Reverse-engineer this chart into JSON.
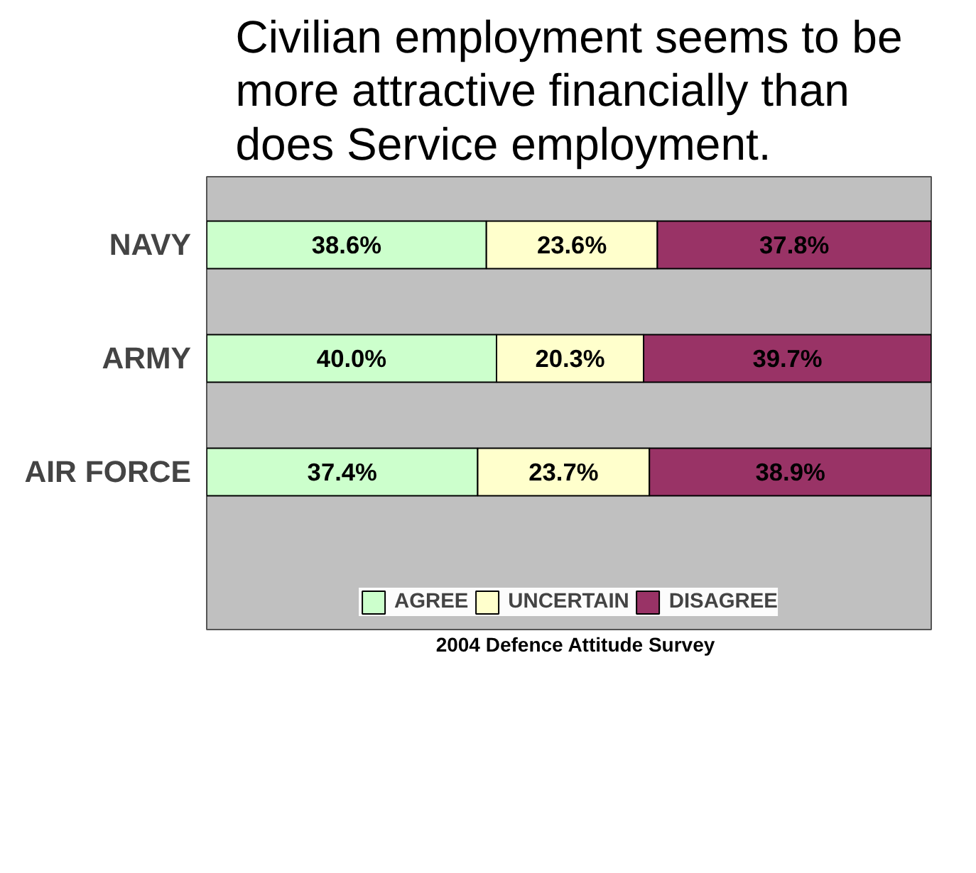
{
  "chart_data": {
    "type": "bar",
    "orientation": "horizontal",
    "stacked": true,
    "title": "Civilian employment seems to be more attractive financially than does Service employment.",
    "categories": [
      "NAVY",
      "ARMY",
      "AIR FORCE"
    ],
    "series": [
      {
        "name": "AGREE",
        "color": "#ccffcc",
        "values": [
          38.6,
          40.0,
          37.4
        ],
        "value_labels": [
          "38.6%",
          "40.0%",
          "37.4%"
        ]
      },
      {
        "name": "UNCERTAIN",
        "color": "#ffffcc",
        "values": [
          23.6,
          20.3,
          23.7
        ],
        "value_labels": [
          "23.6%",
          "20.3%",
          "23.7%"
        ]
      },
      {
        "name": "DISAGREE",
        "color": "#993366",
        "values": [
          37.8,
          39.7,
          38.9
        ],
        "value_labels": [
          "37.8%",
          "39.7%",
          "38.9%"
        ]
      }
    ],
    "legend": "bottom",
    "grid": false,
    "annotations": [
      "2004 Defence Attitude Survey"
    ]
  }
}
